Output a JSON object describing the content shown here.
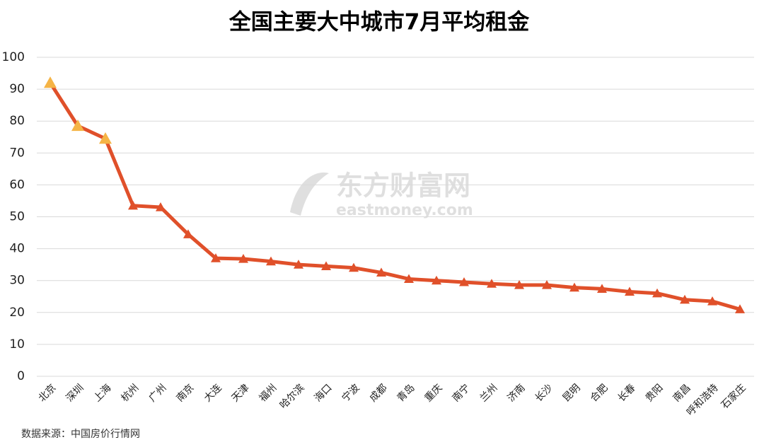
{
  "chart_data": {
    "type": "line",
    "title": "全国主要大中城市7月平均租金",
    "source": "数据来源：中国房价行情网",
    "watermark": "东方财富网",
    "watermark_sub": "eastmoney.com",
    "categories": [
      "北京",
      "深圳",
      "上海",
      "杭州",
      "广州",
      "南京",
      "大连",
      "天津",
      "福州",
      "哈尔滨",
      "海口",
      "宁波",
      "成都",
      "青岛",
      "重庆",
      "南宁",
      "兰州",
      "济南",
      "长沙",
      "昆明",
      "合肥",
      "长春",
      "贵阳",
      "南昌",
      "呼和浩特",
      "石家庄"
    ],
    "series": [
      {
        "color": "#e0502a",
        "values": [
          92,
          78.5,
          74.5,
          53.5,
          53,
          44.5,
          37,
          36.8,
          36,
          35,
          34.5,
          34,
          32.5,
          30.5,
          30,
          29.5,
          29,
          28.6,
          28.6,
          27.8,
          27.4,
          26.5,
          26,
          24,
          23.5,
          21
        ],
        "marker_colors": [
          "#f5b446",
          "#f5b446",
          "#f5b446",
          "#e0502a",
          "#e0502a",
          "#e0502a",
          "#e0502a",
          "#e0502a",
          "#e0502a",
          "#e0502a",
          "#e0502a",
          "#e0502a",
          "#e0502a",
          "#e0502a",
          "#e0502a",
          "#e0502a",
          "#e0502a",
          "#e0502a",
          "#e0502a",
          "#e0502a",
          "#e0502a",
          "#e0502a",
          "#e0502a",
          "#e0502a",
          "#e0502a",
          "#e0502a"
        ]
      }
    ],
    "ylim": [
      0,
      100
    ],
    "yticks": [
      0,
      10,
      20,
      30,
      40,
      50,
      60,
      70,
      80,
      90,
      100
    ],
    "grid": true
  }
}
